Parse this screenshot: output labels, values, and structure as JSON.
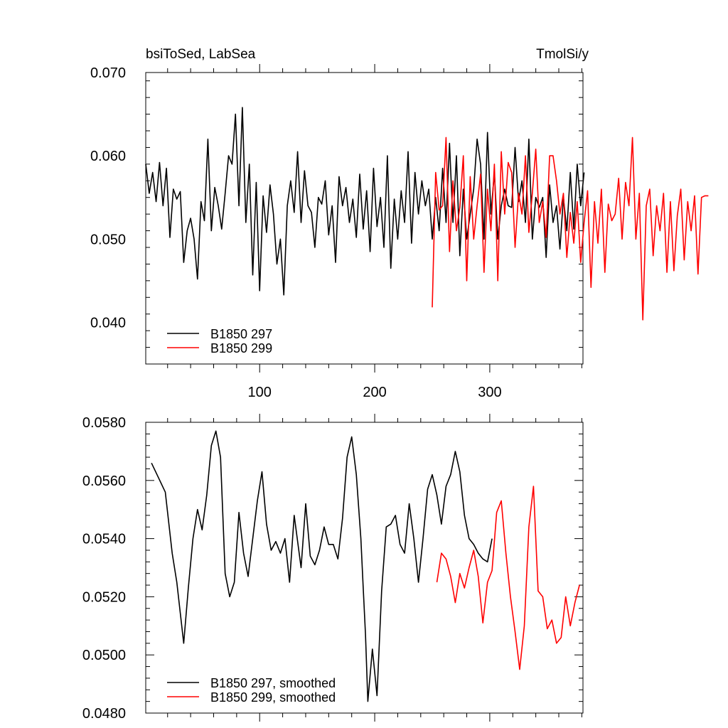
{
  "header": {
    "title": "bsiToSed, LabSea",
    "units": "TmolSi/y"
  },
  "chart_data": [
    {
      "type": "line",
      "title": "bsiToSed, LabSea",
      "units": "TmolSi/y",
      "xlim": [
        1,
        381
      ],
      "ylim": [
        0.035,
        0.07
      ],
      "x_ticks": [
        100,
        200,
        300
      ],
      "x_tick_labels": [
        "100",
        "200",
        "300"
      ],
      "y_ticks": [
        0.04,
        0.05,
        0.06,
        0.07
      ],
      "y_tick_labels": [
        "0.040",
        "0.050",
        "0.060",
        "0.070"
      ],
      "legend": "bottom-left",
      "grid": false,
      "series": [
        {
          "name": "B1850 297",
          "color": "#000000",
          "x_start": 1,
          "x_step": 3,
          "values": [
            0.059,
            0.0555,
            0.058,
            0.0545,
            0.0592,
            0.054,
            0.0585,
            0.0502,
            0.056,
            0.0548,
            0.0557,
            0.0472,
            0.051,
            0.0525,
            0.05,
            0.0452,
            0.0545,
            0.0522,
            0.062,
            0.051,
            0.0562,
            0.054,
            0.0512,
            0.0555,
            0.06,
            0.059,
            0.065,
            0.054,
            0.0658,
            0.052,
            0.059,
            0.0457,
            0.0568,
            0.0438,
            0.0552,
            0.0508,
            0.0565,
            0.053,
            0.047,
            0.05,
            0.0433,
            0.054,
            0.057,
            0.0532,
            0.0605,
            0.052,
            0.0582,
            0.054,
            0.0532,
            0.049,
            0.055,
            0.0542,
            0.057,
            0.0505,
            0.054,
            0.0472,
            0.0575,
            0.054,
            0.0562,
            0.052,
            0.0548,
            0.0502,
            0.0578,
            0.0512,
            0.0558,
            0.0485,
            0.0585,
            0.0515,
            0.055,
            0.049,
            0.06,
            0.0465,
            0.0548,
            0.05,
            0.0558,
            0.052,
            0.0605,
            0.0495,
            0.058,
            0.053,
            0.057,
            0.054,
            0.056,
            0.05,
            0.055,
            0.051,
            0.0585,
            0.052,
            0.0615,
            0.052,
            0.06,
            0.048,
            0.056,
            0.05,
            0.053,
            0.056,
            0.062,
            0.059,
            0.05,
            0.0628,
            0.053,
            0.058,
            0.05,
            0.054,
            0.056,
            0.054,
            0.0538,
            0.061,
            0.0545,
            0.057,
            0.052,
            0.062,
            0.05,
            0.055,
            0.0538,
            0.055,
            0.0478,
            0.0565,
            0.052,
            0.054,
            0.0488,
            0.055,
            0.051,
            0.058,
            0.0512,
            0.059,
            0.054,
            0.058
          ],
          "legend_label": "B1850 297"
        },
        {
          "name": "B1850 299",
          "color": "#ff0000",
          "x_start": 250,
          "x_step": 3,
          "values": [
            0.0418,
            0.058,
            0.0535,
            0.054,
            0.0622,
            0.0485,
            0.057,
            0.051,
            0.0538,
            0.06,
            0.045,
            0.0575,
            0.05,
            0.054,
            0.0578,
            0.046,
            0.056,
            0.051,
            0.059,
            0.045,
            0.0605,
            0.053,
            0.0592,
            0.058,
            0.049,
            0.0555,
            0.053,
            0.06,
            0.0508,
            0.0555,
            0.0608,
            0.052,
            0.0545,
            0.0502,
            0.06,
            0.06,
            0.057,
            0.053,
            0.0555,
            0.0478,
            0.0532,
            0.0495,
            0.0545,
            0.0472,
            0.052,
            0.0558,
            0.0442,
            0.0545,
            0.0495,
            0.056,
            0.046,
            0.0542,
            0.0522,
            0.053,
            0.0573,
            0.05,
            0.0568,
            0.054,
            0.0622,
            0.05,
            0.0555,
            0.0403,
            0.054,
            0.056,
            0.048,
            0.054,
            0.051,
            0.0555,
            0.046,
            0.0545,
            0.0462,
            0.0528,
            0.056,
            0.0475,
            0.0545,
            0.051,
            0.0552,
            0.0458,
            0.055,
            0.0552,
            0.0552
          ],
          "legend_label": "B1850 299"
        }
      ]
    },
    {
      "type": "line",
      "xlim": [
        1,
        381
      ],
      "ylim": [
        0.048,
        0.058
      ],
      "x_ticks": [
        100,
        200,
        300
      ],
      "y_ticks": [
        0.048,
        0.05,
        0.052,
        0.054,
        0.056,
        0.058
      ],
      "y_tick_labels": [
        "0.0480",
        "0.0500",
        "0.0520",
        "0.0540",
        "0.0560",
        "0.0580"
      ],
      "legend": "bottom-left",
      "grid": false,
      "series": [
        {
          "name": "B1850 297, smoothed",
          "color": "#000000",
          "x": [
            6,
            12,
            18,
            24,
            28,
            34,
            38,
            42,
            46,
            50,
            54,
            58,
            62,
            66,
            70,
            74,
            78,
            82,
            86,
            90,
            94,
            98,
            102,
            106,
            110,
            114,
            118,
            122,
            126,
            130,
            136,
            140,
            144,
            148,
            152,
            156,
            160,
            164,
            168,
            172,
            176,
            180,
            184,
            188,
            190,
            192,
            194,
            198,
            202,
            206,
            210,
            214,
            218,
            222,
            226,
            230,
            234,
            238,
            242,
            246,
            250,
            254,
            258,
            262,
            266,
            270,
            274,
            278,
            282,
            286,
            290,
            294,
            298,
            302
          ],
          "y": [
            0.0566,
            0.0561,
            0.0556,
            0.0535,
            0.0525,
            0.0504,
            0.0523,
            0.054,
            0.055,
            0.0543,
            0.0555,
            0.0572,
            0.0577,
            0.0568,
            0.0528,
            0.052,
            0.0525,
            0.0549,
            0.0535,
            0.0527,
            0.054,
            0.0553,
            0.0563,
            0.0545,
            0.0536,
            0.0539,
            0.0535,
            0.054,
            0.0525,
            0.0548,
            0.053,
            0.0552,
            0.0534,
            0.0531,
            0.0536,
            0.0544,
            0.0538,
            0.0538,
            0.0533,
            0.0547,
            0.0568,
            0.0575,
            0.0562,
            0.054,
            0.0523,
            0.0507,
            0.0484,
            0.0502,
            0.0486,
            0.0522,
            0.0544,
            0.0545,
            0.0548,
            0.0538,
            0.0535,
            0.0552,
            0.054,
            0.0525,
            0.054,
            0.0557,
            0.0562,
            0.0555,
            0.0545,
            0.0558,
            0.0562,
            0.057,
            0.0563,
            0.0548,
            0.054,
            0.0538,
            0.0535,
            0.0533,
            0.0532,
            0.054
          ],
          "legend_label": "B1850 297, smoothed"
        },
        {
          "name": "B1850 299, smoothed",
          "color": "#ff0000",
          "x": [
            254,
            258,
            262,
            266,
            270,
            274,
            278,
            282,
            286,
            290,
            294,
            298,
            302,
            306,
            310,
            314,
            318,
            322,
            326,
            330,
            334,
            338,
            342,
            346,
            350,
            354,
            358,
            362,
            366,
            370,
            374,
            378
          ],
          "y": [
            0.0525,
            0.0535,
            0.0533,
            0.0527,
            0.0518,
            0.0528,
            0.0523,
            0.053,
            0.0536,
            0.0527,
            0.0511,
            0.0525,
            0.0529,
            0.0549,
            0.0553,
            0.0535,
            0.052,
            0.0508,
            0.0495,
            0.051,
            0.0544,
            0.0558,
            0.0522,
            0.052,
            0.0509,
            0.0512,
            0.0504,
            0.0506,
            0.052,
            0.051,
            0.0518,
            0.0524
          ],
          "legend_label": "B1850 299, smoothed"
        }
      ]
    }
  ]
}
